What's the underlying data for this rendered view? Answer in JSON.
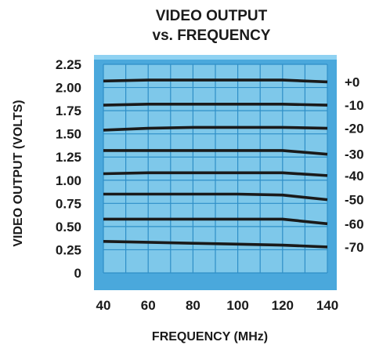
{
  "chart_data": {
    "type": "line",
    "title_line1": "VIDEO OUTPUT",
    "title_line2": "vs. FREQUENCY",
    "xlabel": "FREQUENCY (MHz)",
    "ylabel": "VIDEO OUTPUT (VOLTS)",
    "x": [
      40,
      60,
      80,
      100,
      120,
      140
    ],
    "x_tick_labels": [
      "40",
      "60",
      "80",
      "100",
      "120",
      "140"
    ],
    "y_tick_labels": [
      "2.25",
      "2.00",
      "1.75",
      "1.50",
      "1.25",
      "1.00",
      "0.75",
      "0.50",
      "0.25",
      "0"
    ],
    "xlim": [
      40,
      140
    ],
    "ylim": [
      0,
      2.25
    ],
    "grid": true,
    "colors": {
      "plot_bg": "#7ec8ea",
      "grid": "#2f8fc7",
      "frame": "#4aa8dc",
      "line": "#1a1a1a"
    },
    "series": [
      {
        "name": "+0",
        "values": [
          2.07,
          2.08,
          2.08,
          2.08,
          2.08,
          2.06
        ]
      },
      {
        "name": "-10",
        "values": [
          1.81,
          1.82,
          1.82,
          1.82,
          1.82,
          1.81
        ]
      },
      {
        "name": "-20",
        "values": [
          1.54,
          1.56,
          1.57,
          1.57,
          1.57,
          1.56
        ]
      },
      {
        "name": "-30",
        "values": [
          1.32,
          1.32,
          1.32,
          1.32,
          1.32,
          1.28
        ]
      },
      {
        "name": "-40",
        "values": [
          1.07,
          1.08,
          1.08,
          1.08,
          1.08,
          1.05
        ]
      },
      {
        "name": "-50",
        "values": [
          0.85,
          0.85,
          0.85,
          0.85,
          0.84,
          0.79
        ]
      },
      {
        "name": "-60",
        "values": [
          0.58,
          0.58,
          0.58,
          0.58,
          0.58,
          0.53
        ]
      },
      {
        "name": "-70",
        "values": [
          0.34,
          0.33,
          0.32,
          0.31,
          0.3,
          0.28
        ]
      }
    ]
  }
}
